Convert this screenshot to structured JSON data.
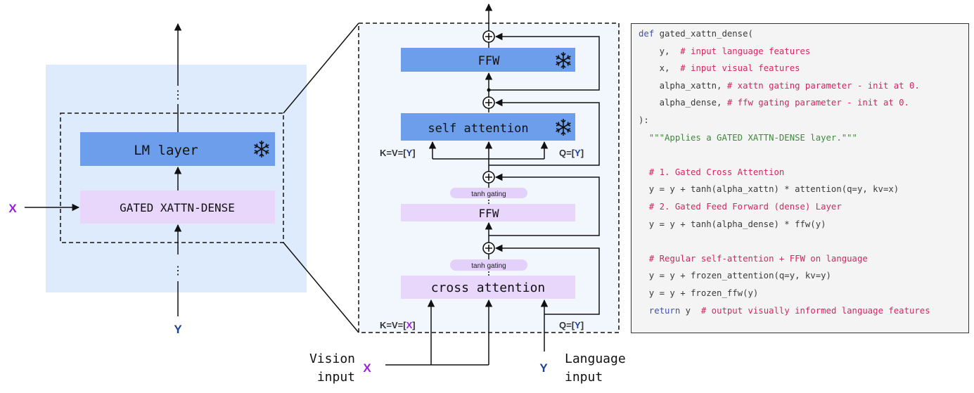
{
  "colors": {
    "frozen_block": "#6d9eeb",
    "gated_block": "#e8d6fb",
    "gating_pill": "#e3d0fb",
    "outer_bg": "#ddebfc",
    "inner_bg": "#f2f6fd",
    "x_label": "#9a1ee0",
    "y_label": "#1f3f99",
    "keyword": "#3f4fb0",
    "comment": "#d6245f",
    "string": "#3d8a3a",
    "code_text": "#3a3a3a"
  },
  "left": {
    "lm_layer": "LM layer",
    "gated_block": "GATED XATTN-DENSE",
    "x_label": "X",
    "y_label": "Y",
    "ellipsis": "⋮",
    "frozen_icon": "snowflake-icon"
  },
  "middle": {
    "ffw_top": "FFW",
    "self_attention": "self attention",
    "ffw_gated": "FFW",
    "cross_attention": "cross attention",
    "tanh_gating": "tanh gating",
    "sa_kv": {
      "prefix": "K=V=[",
      "var": "Y",
      "suffix": "]"
    },
    "sa_q": {
      "prefix": "Q=[",
      "var": "Y",
      "suffix": "]"
    },
    "ca_kv": {
      "prefix": "K=V=[",
      "var": "X",
      "suffix": "]"
    },
    "ca_q": {
      "prefix": "Q=[",
      "var": "Y",
      "suffix": "]"
    },
    "vision_input": [
      "Vision",
      "input"
    ],
    "language_input": [
      "Language",
      "input"
    ],
    "x_label": "X",
    "y_label": "Y",
    "plus_icon": "plus-circle-icon"
  },
  "code": {
    "lines": [
      [
        [
          "k",
          "def "
        ],
        [
          "t",
          "gated_xattn_dense("
        ]
      ],
      [
        [
          "t",
          "    y,  "
        ],
        [
          "c",
          "# input language features"
        ]
      ],
      [
        [
          "t",
          "    x,  "
        ],
        [
          "c",
          "# input visual features"
        ]
      ],
      [
        [
          "t",
          "    alpha_xattn, "
        ],
        [
          "c",
          "# xattn gating parameter - init at 0."
        ]
      ],
      [
        [
          "t",
          "    alpha_dense, "
        ],
        [
          "c",
          "# ffw gating parameter - init at 0."
        ]
      ],
      [
        [
          "t",
          "):"
        ]
      ],
      [
        [
          "s",
          "  \"\"\"Applies a GATED XATTN-DENSE layer.\"\"\""
        ]
      ],
      [],
      [
        [
          "c",
          "  # 1. Gated Cross Attention"
        ]
      ],
      [
        [
          "t",
          "  y = y + tanh(alpha_xattn) * attention(q=y, kv=x)"
        ]
      ],
      [
        [
          "c",
          "  # 2. Gated Feed Forward (dense) Layer"
        ]
      ],
      [
        [
          "t",
          "  y = y + tanh(alpha_dense) * ffw(y)"
        ]
      ],
      [],
      [
        [
          "c",
          "  # Regular self-attention + FFW on language"
        ]
      ],
      [
        [
          "t",
          "  y = y + frozen_attention(q=y, kv=y)"
        ]
      ],
      [
        [
          "t",
          "  y = y + frozen_ffw(y)"
        ]
      ],
      [
        [
          "k",
          "  return "
        ],
        [
          "t",
          "y  "
        ],
        [
          "c",
          "# output visually informed language features"
        ]
      ]
    ]
  }
}
